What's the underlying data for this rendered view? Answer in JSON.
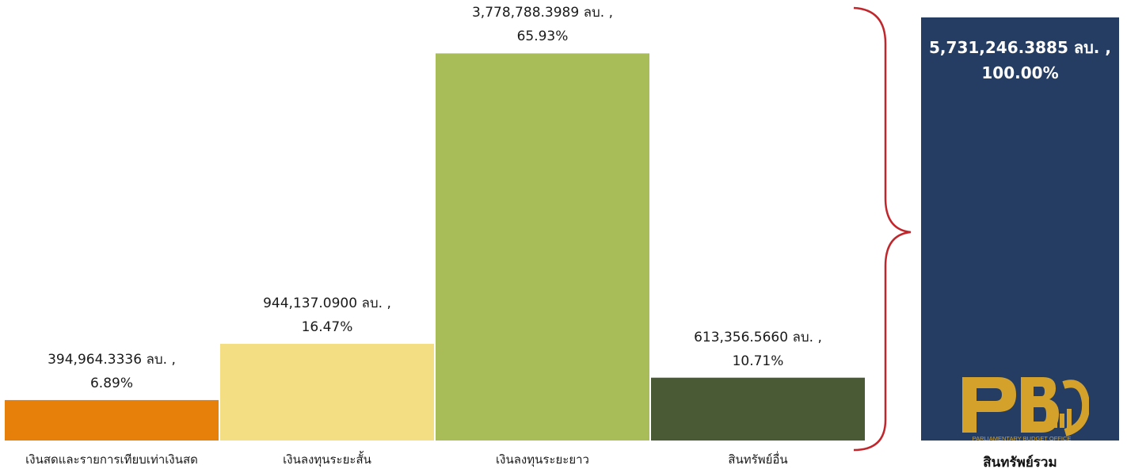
{
  "chart_data": {
    "type": "bar",
    "categories": [
      "เงินสดและรายการเทียบเท่าเงินสด",
      "เงินลงทุนระยะสั้น",
      "เงินลงทุนระยะยาว",
      "สินทรัพย์อื่น"
    ],
    "values": [
      394964.3336,
      944137.09,
      3778788.3989,
      613356.566
    ],
    "percents": [
      "6.89%",
      "16.47%",
      "65.93%",
      "10.71%"
    ],
    "value_labels": [
      "394,964.3336 ลบ. ,",
      "944,137.0900 ลบ. ,",
      "3,778,788.3989 ลบ. ,",
      "613,356.5660 ลบ. ,"
    ],
    "colors": [
      "#E6800B",
      "#F3DE84",
      "#A8BD58",
      "#4A5A35"
    ],
    "total": {
      "category": "สินทรัพย์รวม",
      "value": 5731246.3885,
      "value_label": "5,731,246.3885 ลบ. ,",
      "percent": "100.00%",
      "color": "#253D62"
    },
    "brace_color": "#C0272D",
    "ylim": [
      0,
      4300000
    ]
  },
  "logo": {
    "letters": "PBO",
    "text": "PARLIAMENTARY BUDGET OFFICE",
    "color": "#D4A22A"
  }
}
